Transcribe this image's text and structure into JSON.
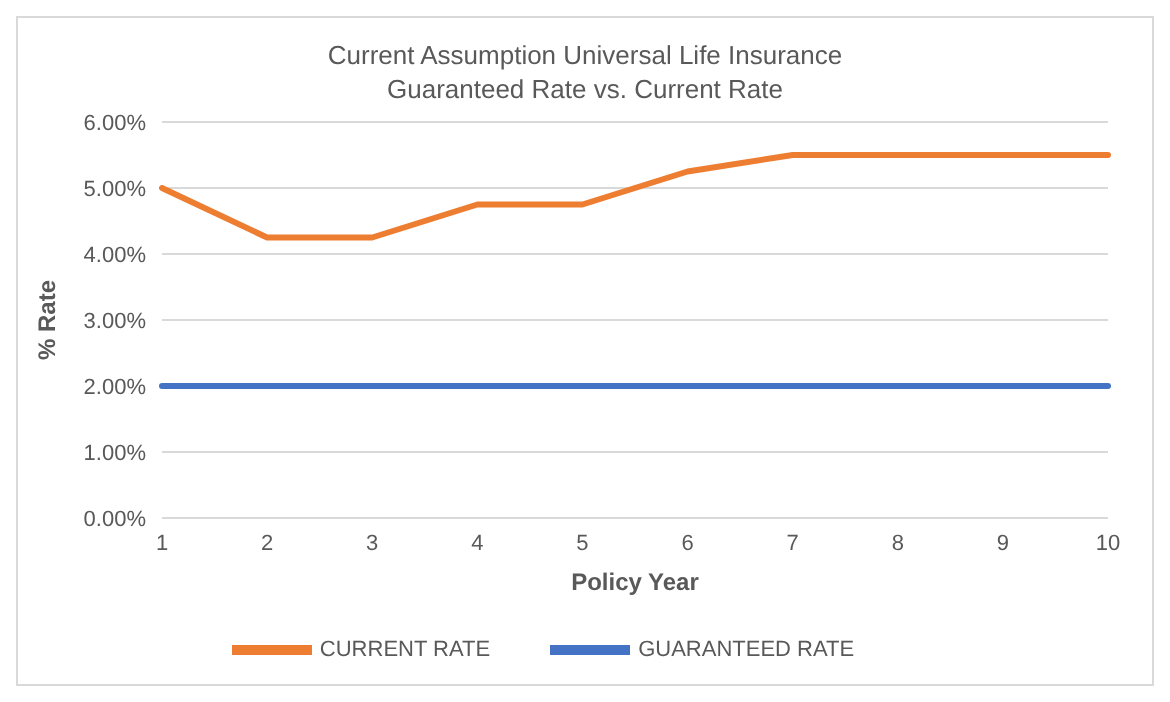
{
  "chart_data": {
    "type": "line",
    "title": "Current Assumption Universal Life Insurance\nGuaranteed Rate vs. Current Rate",
    "xlabel": "Policy Year",
    "ylabel": "% Rate",
    "categories": [
      "1",
      "2",
      "3",
      "4",
      "5",
      "6",
      "7",
      "8",
      "9",
      "10"
    ],
    "series": [
      {
        "name": "GUARANTEED RATE",
        "color": "#4472c4",
        "values": [
          2,
          2,
          2,
          2,
          2,
          2,
          2,
          2,
          2,
          2
        ]
      },
      {
        "name": "CURRENT RATE",
        "color": "#ed7d31",
        "values": [
          5,
          4.25,
          4.25,
          4.75,
          4.75,
          5.25,
          5.5,
          5.5,
          5.5,
          5.5
        ]
      }
    ],
    "ylim": [
      0,
      6
    ],
    "yticks": [
      {
        "value": 0,
        "label": "0.00%"
      },
      {
        "value": 1,
        "label": "1.00%"
      },
      {
        "value": 2,
        "label": "2.00%"
      },
      {
        "value": 3,
        "label": "3.00%"
      },
      {
        "value": 4,
        "label": "4.00%"
      },
      {
        "value": 5,
        "label": "5.00%"
      },
      {
        "value": 6,
        "label": "6.00%"
      }
    ],
    "grid": "y",
    "legend": "bottom",
    "marker": "none",
    "line_style": "solid"
  }
}
